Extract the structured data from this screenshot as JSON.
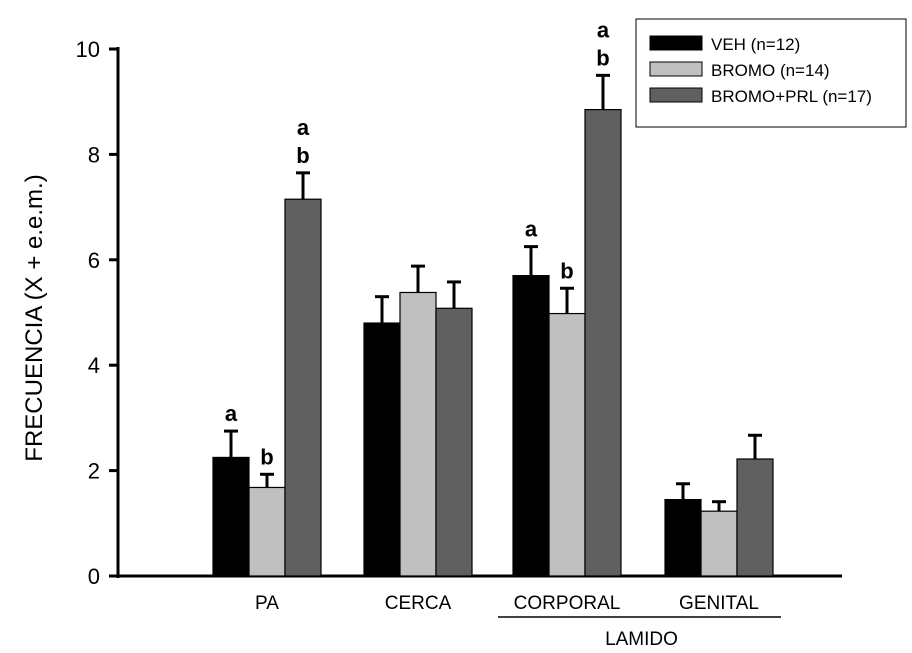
{
  "chart_data": {
    "type": "bar",
    "ylabel": "FRECUENCIA (X + e.e.m.)",
    "xlabel": "",
    "ylim": [
      0,
      10
    ],
    "yticks": [
      0,
      2,
      4,
      6,
      8,
      10
    ],
    "categories": [
      "PA",
      "CERCA",
      "CORPORAL",
      "GENITAL"
    ],
    "group_label": {
      "text": "LAMIDO",
      "categories": [
        "CORPORAL",
        "GENITAL"
      ]
    },
    "series": [
      {
        "name": "VEH (n=12)",
        "color": "#000000",
        "values": [
          2.25,
          4.8,
          5.7,
          1.45
        ],
        "errors": [
          0.5,
          0.5,
          0.55,
          0.3
        ],
        "annotations": [
          "a",
          "",
          "a",
          ""
        ]
      },
      {
        "name": "BROMO (n=14)",
        "color": "#c0c0c0",
        "values": [
          1.68,
          5.38,
          4.98,
          1.23
        ],
        "errors": [
          0.25,
          0.5,
          0.48,
          0.18
        ],
        "annotations": [
          "b",
          "",
          "b",
          ""
        ]
      },
      {
        "name": "BROMO+PRL (n=17)",
        "color": "#606060",
        "values": [
          7.15,
          5.08,
          8.85,
          2.22
        ],
        "errors": [
          0.5,
          0.5,
          0.65,
          0.45
        ],
        "annotations": [
          "a\nb",
          "",
          "a\nb",
          ""
        ]
      }
    ],
    "grid": false,
    "legend_position": "top-right"
  }
}
